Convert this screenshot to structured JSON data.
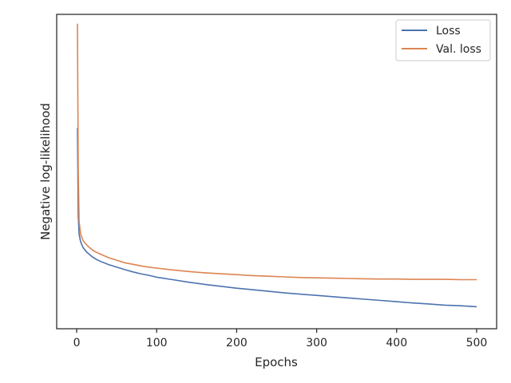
{
  "chart_data": {
    "type": "line",
    "xlabel": "Epochs",
    "ylabel": "Negative log-likelihood",
    "xlim": [
      -25,
      525
    ],
    "ylim": [
      0,
      1
    ],
    "x_ticks": [
      0,
      100,
      200,
      300,
      400,
      500
    ],
    "y_ticks_shown": false,
    "grid": false,
    "legend_placement": "top-right",
    "series": [
      {
        "name": "Loss",
        "color": "#4c72b0",
        "points": [
          [
            1,
            0.639
          ],
          [
            2,
            0.36
          ],
          [
            3,
            0.3
          ],
          [
            5,
            0.275
          ],
          [
            8,
            0.258
          ],
          [
            12,
            0.245
          ],
          [
            16,
            0.236
          ],
          [
            20,
            0.228
          ],
          [
            25,
            0.22
          ],
          [
            30,
            0.214
          ],
          [
            40,
            0.204
          ],
          [
            50,
            0.196
          ],
          [
            60,
            0.188
          ],
          [
            70,
            0.181
          ],
          [
            80,
            0.175
          ],
          [
            90,
            0.17
          ],
          [
            100,
            0.164
          ],
          [
            120,
            0.156
          ],
          [
            140,
            0.148
          ],
          [
            160,
            0.141
          ],
          [
            180,
            0.135
          ],
          [
            200,
            0.129
          ],
          [
            220,
            0.124
          ],
          [
            240,
            0.119
          ],
          [
            260,
            0.114
          ],
          [
            280,
            0.11
          ],
          [
            300,
            0.106
          ],
          [
            320,
            0.102
          ],
          [
            340,
            0.098
          ],
          [
            360,
            0.094
          ],
          [
            380,
            0.09
          ],
          [
            400,
            0.086
          ],
          [
            420,
            0.082
          ],
          [
            440,
            0.079
          ],
          [
            460,
            0.075
          ],
          [
            480,
            0.073
          ],
          [
            500,
            0.07
          ]
        ]
      },
      {
        "name": "Val. loss",
        "color": "#dd8452",
        "points": [
          [
            1,
            0.97
          ],
          [
            2,
            0.5
          ],
          [
            3,
            0.34
          ],
          [
            5,
            0.3
          ],
          [
            8,
            0.28
          ],
          [
            12,
            0.268
          ],
          [
            16,
            0.258
          ],
          [
            20,
            0.25
          ],
          [
            25,
            0.243
          ],
          [
            30,
            0.237
          ],
          [
            40,
            0.226
          ],
          [
            50,
            0.218
          ],
          [
            60,
            0.21
          ],
          [
            70,
            0.205
          ],
          [
            80,
            0.2
          ],
          [
            90,
            0.196
          ],
          [
            100,
            0.193
          ],
          [
            120,
            0.187
          ],
          [
            140,
            0.182
          ],
          [
            160,
            0.178
          ],
          [
            180,
            0.175
          ],
          [
            200,
            0.172
          ],
          [
            220,
            0.169
          ],
          [
            240,
            0.167
          ],
          [
            260,
            0.165
          ],
          [
            280,
            0.163
          ],
          [
            300,
            0.162
          ],
          [
            320,
            0.161
          ],
          [
            340,
            0.16
          ],
          [
            360,
            0.159
          ],
          [
            380,
            0.158
          ],
          [
            400,
            0.158
          ],
          [
            420,
            0.157
          ],
          [
            440,
            0.157
          ],
          [
            460,
            0.157
          ],
          [
            480,
            0.156
          ],
          [
            500,
            0.156
          ]
        ]
      }
    ]
  }
}
